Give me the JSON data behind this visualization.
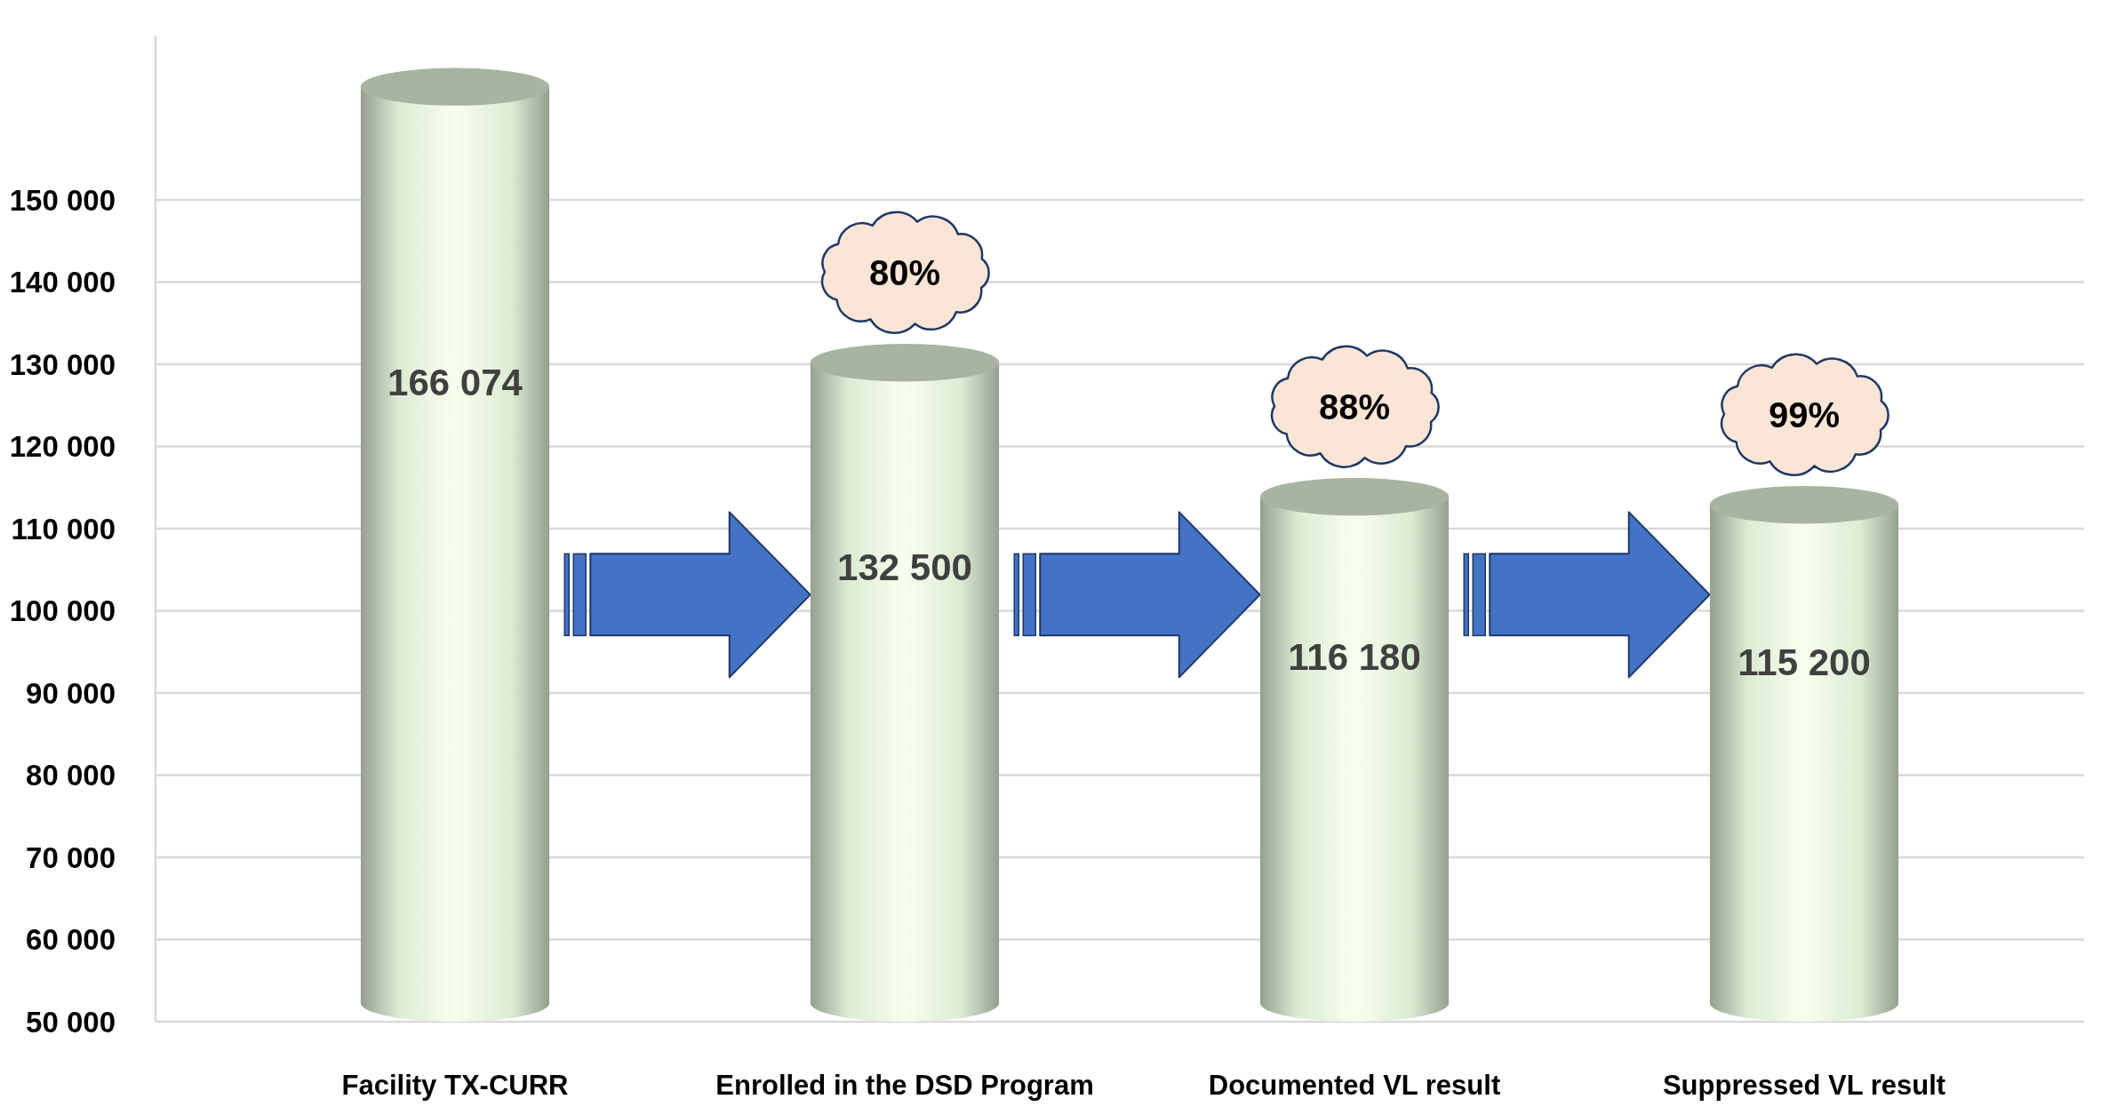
{
  "chart_data": {
    "type": "bar",
    "categories": [
      "Facility TX-CURR",
      "Enrolled in the DSD Program",
      "Documented VL result",
      "Suppressed VL result"
    ],
    "values": [
      166074,
      132500,
      116180,
      115200
    ],
    "value_labels": [
      "166 074",
      "132 500",
      "116 180",
      "115 200"
    ],
    "color": "#dcebd3",
    "ylim": [
      50000,
      170000
    ],
    "yticks": [
      {
        "value": 50000,
        "label": "50 000"
      },
      {
        "value": 60000,
        "label": "60 000"
      },
      {
        "value": 70000,
        "label": "70 000"
      },
      {
        "value": 80000,
        "label": "80 000"
      },
      {
        "value": 90000,
        "label": "90 000"
      },
      {
        "value": 100000,
        "label": "100 000"
      },
      {
        "value": 110000,
        "label": "110 000"
      },
      {
        "value": 120000,
        "label": "120 000"
      },
      {
        "value": 130000,
        "label": "130 000"
      },
      {
        "value": 140000,
        "label": "140 000"
      },
      {
        "value": 150000,
        "label": "150 000"
      }
    ],
    "grid": "y",
    "annotations": [
      {
        "text": "80%",
        "x": "Enrolled in the DSD Program",
        "y": 132500
      },
      {
        "text": "88%",
        "x": "Documented VL result",
        "y": 116180
      },
      {
        "text": "99%",
        "x": "Suppressed VL result",
        "y": 115200
      }
    ]
  }
}
